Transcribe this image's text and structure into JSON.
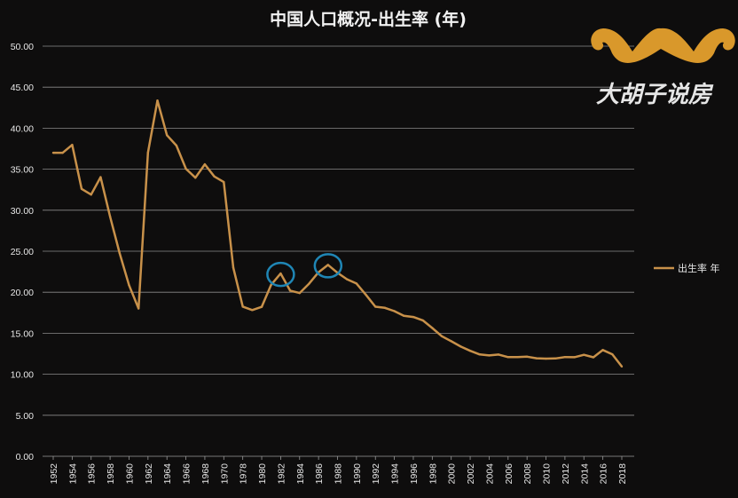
{
  "chart_data": {
    "type": "line",
    "title": "中国人口概况-出生率 (年)",
    "xlabel": "",
    "ylabel": "",
    "ylim": [
      0,
      50
    ],
    "yticks": [
      "0.00",
      "5.00",
      "10.00",
      "15.00",
      "20.00",
      "25.00",
      "30.00",
      "35.00",
      "40.00",
      "45.00",
      "50.00"
    ],
    "grid": true,
    "legend_position": "right",
    "x": [
      1952,
      1953,
      1954,
      1955,
      1956,
      1957,
      1958,
      1959,
      1960,
      1961,
      1962,
      1963,
      1964,
      1965,
      1966,
      1967,
      1968,
      1969,
      1970,
      1975,
      1978,
      1979,
      1980,
      1981,
      1982,
      1983,
      1984,
      1985,
      1986,
      1987,
      1988,
      1989,
      1990,
      1991,
      1992,
      1993,
      1994,
      1995,
      1996,
      1997,
      1998,
      1999,
      2000,
      2001,
      2002,
      2003,
      2004,
      2005,
      2006,
      2007,
      2008,
      2009,
      2010,
      2011,
      2012,
      2013,
      2014,
      2015,
      2016,
      2017,
      2018
    ],
    "xtick_labels": [
      "1952",
      "1954",
      "1956",
      "1958",
      "1960",
      "1962",
      "1964",
      "1966",
      "1968",
      "1970",
      "1978",
      "1980",
      "1982",
      "1984",
      "1986",
      "1988",
      "1990",
      "1992",
      "1994",
      "1996",
      "1998",
      "2000",
      "2002",
      "2004",
      "2006",
      "2008",
      "2010",
      "2012",
      "2014",
      "2016",
      "2018"
    ],
    "series": [
      {
        "name": "出生率 年",
        "color": "#c8914a",
        "values": [
          37.0,
          37.0,
          37.97,
          32.6,
          31.9,
          34.03,
          29.22,
          24.78,
          20.86,
          18.02,
          37.01,
          43.37,
          39.14,
          37.88,
          35.05,
          33.96,
          35.59,
          34.11,
          33.43,
          23.01,
          18.25,
          17.82,
          18.21,
          20.91,
          22.28,
          20.19,
          19.9,
          21.04,
          22.43,
          23.33,
          22.37,
          21.58,
          21.06,
          19.68,
          18.24,
          18.09,
          17.7,
          17.12,
          16.98,
          16.57,
          15.64,
          14.64,
          14.03,
          13.38,
          12.86,
          12.41,
          12.29,
          12.4,
          12.09,
          12.1,
          12.14,
          11.95,
          11.9,
          11.93,
          12.1,
          12.08,
          12.37,
          12.07,
          12.95,
          12.43,
          10.94
        ]
      }
    ],
    "annotations": [
      {
        "type": "circle",
        "x": 1982
      },
      {
        "type": "circle",
        "x": 1987
      }
    ]
  },
  "logo": {
    "text": "大胡子说房",
    "color": "#d9982b"
  }
}
